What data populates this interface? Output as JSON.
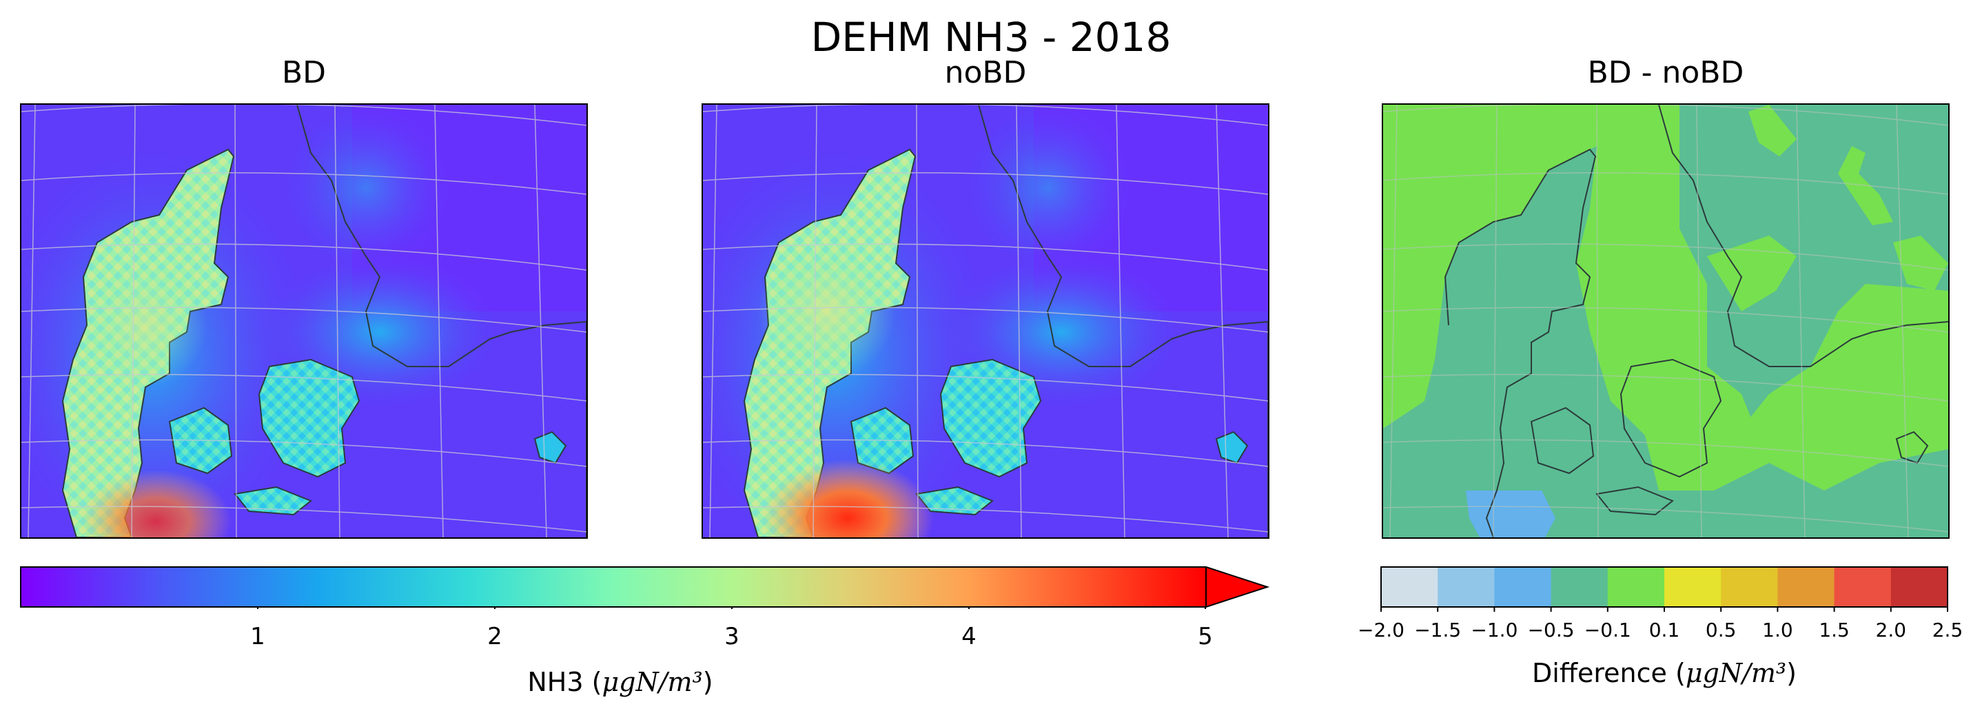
{
  "figure": {
    "title": "DEHM NH3 - 2018",
    "panels": [
      {
        "title": "BD",
        "kind": "concentration",
        "field": "bd"
      },
      {
        "title": "noBD",
        "kind": "concentration",
        "field": "nobd"
      },
      {
        "title": "BD - noBD",
        "kind": "difference"
      }
    ]
  },
  "colorbar_main": {
    "label_prefix": "NH3 (",
    "label_unit": "μgN/m³",
    "label_suffix": ")",
    "ticks": [
      "1",
      "2",
      "3",
      "4",
      "5"
    ],
    "tick_values": [
      1,
      2,
      3,
      4,
      5
    ],
    "range": [
      0,
      5
    ],
    "colormap": "rainbow",
    "extend": "max"
  },
  "colorbar_diff": {
    "label_prefix": "Difference (",
    "label_unit": "μgN/m³",
    "label_suffix": ")",
    "ticks": [
      "−2.0",
      "−1.5",
      "−1.0",
      "−0.5",
      "−0.1",
      "0.1",
      "0.5",
      "1.0",
      "1.5",
      "2.0",
      "2.5"
    ],
    "bin_colors": [
      "#d1dfe9",
      "#92c6e8",
      "#64b1ec",
      "#5bbd94",
      "#77e04f",
      "#e5e32d",
      "#e2c52a",
      "#e29932",
      "#ec5040",
      "#c53030"
    ]
  },
  "map_colors": {
    "land_outline": "#2b3b3b",
    "gridline": "#c9c9d6",
    "diff_positive_small": "#77e04f",
    "diff_negative_small": "#5bbd94",
    "diff_negative_medium": "#64b1ec"
  }
}
